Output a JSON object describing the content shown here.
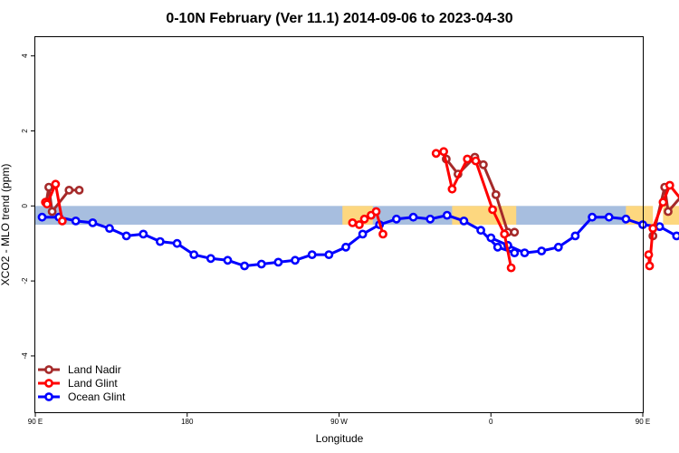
{
  "chart_data": {
    "type": "line",
    "title": "0-10N February (Ver 11.1)   2014-09-06 to 2023-04-30",
    "xlabel": "Longitude",
    "ylabel": "XCO2 - MLO trend (ppm)",
    "xlim": [
      90,
      450
    ],
    "ylim": [
      -5.5,
      4.5
    ],
    "x_ticks": [
      {
        "value": 90,
        "label": "90 E"
      },
      {
        "value": 180,
        "label": "180"
      },
      {
        "value": 270,
        "label": "90 W"
      },
      {
        "value": 360,
        "label": "0"
      },
      {
        "value": 450,
        "label": "90 E"
      },
      {
        "value": 540,
        "label": "180"
      }
    ],
    "y_ticks": [
      {
        "value": -4,
        "label": "-4"
      },
      {
        "value": -2,
        "label": "-2"
      },
      {
        "value": 0,
        "label": "0"
      },
      {
        "value": 2,
        "label": "2"
      },
      {
        "value": 4,
        "label": "4"
      }
    ],
    "grid": false,
    "legend_position": "bottom-left",
    "map_band": {
      "y_top": 0,
      "y_bottom": -0.5,
      "ocean_color": "#a7bedf",
      "land_color": "#fdd77f"
    },
    "land_segments": [
      [
        272,
        290
      ],
      [
        337,
        375
      ],
      [
        440,
        456
      ],
      [
        462,
        472
      ],
      [
        475,
        482
      ]
    ],
    "series": [
      {
        "name": "Land Nadir",
        "color": "#a52a2a",
        "segments": [
          [
            [
              96.5,
              0.1
            ],
            [
              98,
              0.5
            ],
            [
              100,
              -0.15
            ],
            [
              110,
              0.42
            ],
            [
              116,
              0.42
            ]
          ],
          [
            [
              333.5,
              1.25
            ],
            [
              340.5,
              0.85
            ],
            [
              350.5,
              1.3
            ],
            [
              355.5,
              1.1
            ],
            [
              363,
              0.3
            ],
            [
              370,
              -0.7
            ],
            [
              374,
              -0.7
            ]
          ],
          [
            [
              456,
              -0.8
            ],
            [
              463,
              0.5
            ],
            [
              465,
              -0.15
            ],
            [
              476,
              0.42
            ],
            [
              483,
              0.42
            ]
          ]
        ]
      },
      {
        "name": "Land Glint",
        "color": "#ff0000",
        "segments": [
          [
            [
              96,
              0.1
            ],
            [
              97,
              0.05
            ],
            [
              102,
              0.58
            ],
            [
              106,
              -0.4
            ]
          ],
          [
            [
              278,
              -0.45
            ],
            [
              282,
              -0.5
            ],
            [
              285,
              -0.35
            ],
            [
              289,
              -0.25
            ],
            [
              292,
              -0.15
            ],
            [
              296,
              -0.75
            ]
          ],
          [
            [
              327.5,
              1.4
            ],
            [
              332,
              1.45
            ],
            [
              337,
              0.45
            ],
            [
              346,
              1.25
            ],
            [
              351,
              1.2
            ],
            [
              361,
              -0.1
            ],
            [
              368,
              -0.75
            ],
            [
              372,
              -1.65
            ]
          ],
          [
            [
              453.5,
              -1.3
            ],
            [
              454,
              -1.6
            ],
            [
              456,
              -0.6
            ],
            [
              462,
              0.1
            ],
            [
              466,
              0.55
            ],
            [
              483,
              -0.4
            ]
          ]
        ]
      },
      {
        "name": "Ocean Glint",
        "color": "#0000ff",
        "segments": [
          [
            [
              94,
              -0.3
            ],
            [
              104,
              -0.3
            ],
            [
              114,
              -0.4
            ],
            [
              124,
              -0.45
            ],
            [
              134,
              -0.6
            ],
            [
              144,
              -0.8
            ],
            [
              154,
              -0.75
            ],
            [
              164,
              -0.95
            ],
            [
              174,
              -1.0
            ],
            [
              184,
              -1.3
            ],
            [
              194,
              -1.4
            ],
            [
              204,
              -1.45
            ],
            [
              214,
              -1.6
            ],
            [
              224,
              -1.55
            ],
            [
              234,
              -1.5
            ],
            [
              244,
              -1.45
            ],
            [
              254,
              -1.3
            ],
            [
              264,
              -1.3
            ],
            [
              274,
              -1.1
            ],
            [
              284,
              -0.75
            ],
            [
              294,
              -0.5
            ],
            [
              304,
              -0.35
            ],
            [
              314,
              -0.3
            ],
            [
              324,
              -0.35
            ],
            [
              334,
              -0.25
            ],
            [
              344,
              -0.4
            ],
            [
              354,
              -0.65
            ],
            [
              364,
              -1.1
            ],
            [
              374,
              -1.25
            ]
          ],
          [
            [
              360,
              -0.85
            ],
            [
              370,
              -1.05
            ],
            [
              380,
              -1.25
            ],
            [
              390,
              -1.2
            ],
            [
              400,
              -1.1
            ],
            [
              410,
              -0.8
            ],
            [
              420,
              -0.3
            ],
            [
              430,
              -0.3
            ],
            [
              440,
              -0.35
            ],
            [
              450,
              -0.5
            ],
            [
              460,
              -0.55
            ],
            [
              470,
              -0.8
            ],
            [
              480,
              -0.75
            ],
            [
              490,
              -0.95
            ],
            [
              500,
              -1.0
            ]
          ]
        ]
      }
    ]
  }
}
